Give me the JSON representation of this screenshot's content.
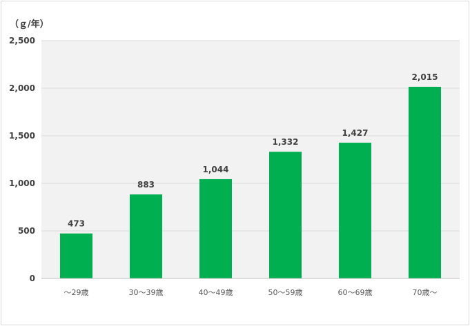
{
  "chart_data": {
    "type": "bar",
    "unit_label": "（ｇ/年）",
    "categories": [
      "～29歳",
      "30～39歳",
      "40～49歳",
      "50～59歳",
      "60～69歳",
      "70歳～"
    ],
    "values": [
      473,
      883,
      1044,
      1332,
      1427,
      2015
    ],
    "data_labels": [
      "473",
      "883",
      "1,044",
      "1,332",
      "1,427",
      "2,015"
    ],
    "ylim": [
      0,
      2500
    ],
    "yticks": [
      0,
      500,
      1000,
      1500,
      2000,
      2500
    ],
    "ytick_labels": [
      "0",
      "500",
      "1,000",
      "1,500",
      "2,000",
      "2,500"
    ],
    "grid": true,
    "legend": "none",
    "bar_color": "#00b050",
    "plot_background": "#f2f2f2",
    "grid_color": "#d9d9d9"
  }
}
